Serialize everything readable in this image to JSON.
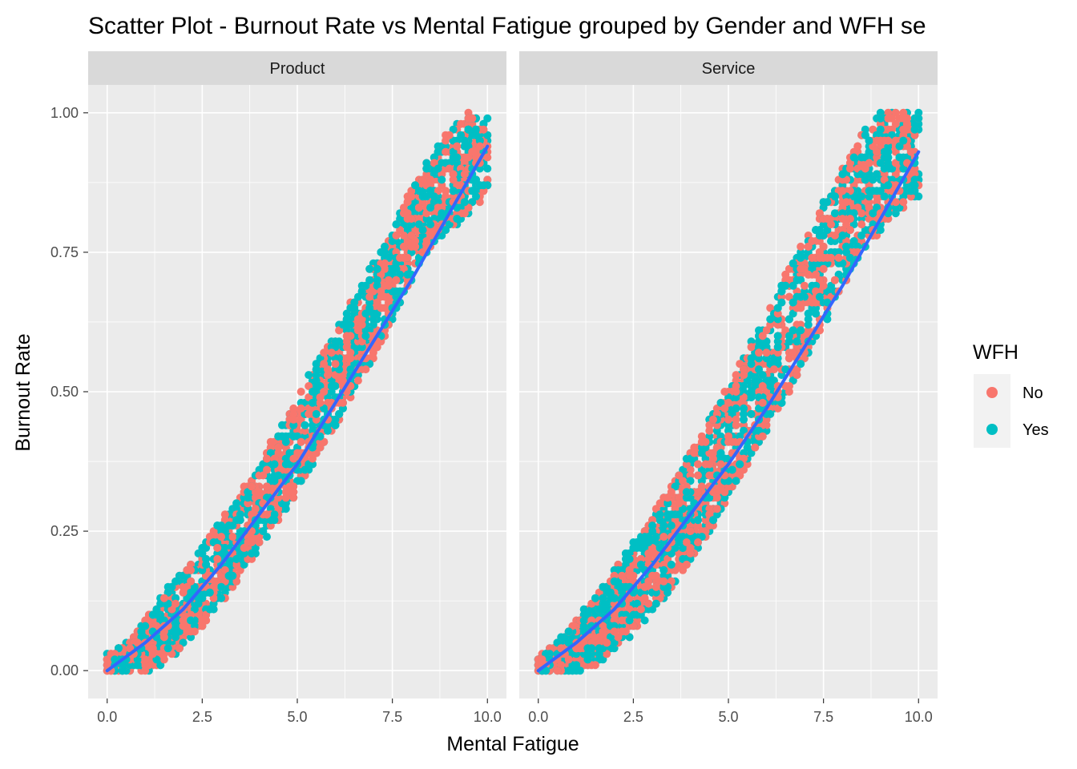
{
  "chart_data": {
    "type": "scatter",
    "title": "Scatter Plot - Burnout Rate vs Mental Fatigue grouped by Gender and WFH se",
    "xlabel": "Mental Fatigue",
    "ylabel": "Burnout Rate",
    "xlim": [
      -0.5,
      10.5
    ],
    "ylim": [
      -0.05,
      1.05
    ],
    "x_ticks": [
      0,
      2.5,
      5,
      7.5,
      10
    ],
    "x_tick_labels": [
      "0.0",
      "2.5",
      "5.0",
      "7.5",
      "10.0"
    ],
    "y_ticks": [
      0,
      0.25,
      0.5,
      0.75,
      1
    ],
    "y_tick_labels": [
      "0.00",
      "0.25",
      "0.50",
      "0.75",
      "1.00"
    ],
    "grid": true,
    "legend": {
      "title": "WFH",
      "position": "right",
      "entries": [
        {
          "label": "No",
          "color": "#F8766D"
        },
        {
          "label": "Yes",
          "color": "#00BFC4"
        }
      ]
    },
    "facets": [
      {
        "label": "Product",
        "trend": {
          "color": "#3366FF",
          "x": [
            0,
            1,
            2,
            3,
            4,
            5,
            6,
            7,
            8,
            9,
            10
          ],
          "y": [
            0.0,
            0.05,
            0.11,
            0.19,
            0.28,
            0.37,
            0.48,
            0.59,
            0.7,
            0.82,
            0.94
          ]
        },
        "band": {
          "x": [
            0.0,
            0.5,
            1.0,
            1.5,
            2.0,
            2.5,
            3.0,
            3.5,
            4.0,
            4.5,
            5.0,
            5.5,
            6.0,
            6.5,
            7.0,
            7.5,
            8.0,
            8.5,
            9.0,
            9.5,
            10.0
          ],
          "low": [
            0.0,
            0.0,
            0.0,
            0.01,
            0.04,
            0.08,
            0.12,
            0.17,
            0.22,
            0.27,
            0.32,
            0.38,
            0.44,
            0.5,
            0.56,
            0.63,
            0.7,
            0.76,
            0.79,
            0.82,
            0.85
          ],
          "high": [
            0.03,
            0.05,
            0.09,
            0.14,
            0.18,
            0.22,
            0.27,
            0.32,
            0.37,
            0.43,
            0.49,
            0.55,
            0.61,
            0.67,
            0.73,
            0.79,
            0.86,
            0.92,
            0.97,
            1.0,
            1.0
          ]
        }
      },
      {
        "label": "Service",
        "trend": {
          "color": "#3366FF",
          "x": [
            0,
            1,
            2,
            3,
            4,
            5,
            6,
            7,
            8,
            9,
            10
          ],
          "y": [
            0.0,
            0.05,
            0.11,
            0.19,
            0.28,
            0.37,
            0.47,
            0.58,
            0.69,
            0.81,
            0.93
          ]
        },
        "band": {
          "x": [
            0.0,
            0.5,
            1.0,
            1.5,
            2.0,
            2.5,
            3.0,
            3.5,
            4.0,
            4.5,
            5.0,
            5.5,
            6.0,
            6.5,
            7.0,
            7.5,
            8.0,
            8.5,
            9.0,
            9.5,
            10.0
          ],
          "low": [
            0.0,
            0.0,
            0.0,
            0.01,
            0.04,
            0.07,
            0.11,
            0.15,
            0.2,
            0.25,
            0.31,
            0.37,
            0.43,
            0.49,
            0.55,
            0.62,
            0.69,
            0.75,
            0.79,
            0.83,
            0.85
          ],
          "high": [
            0.02,
            0.05,
            0.09,
            0.13,
            0.18,
            0.23,
            0.28,
            0.33,
            0.39,
            0.45,
            0.51,
            0.58,
            0.64,
            0.71,
            0.77,
            0.84,
            0.9,
            0.96,
            1.0,
            1.0,
            1.0
          ]
        }
      }
    ]
  }
}
